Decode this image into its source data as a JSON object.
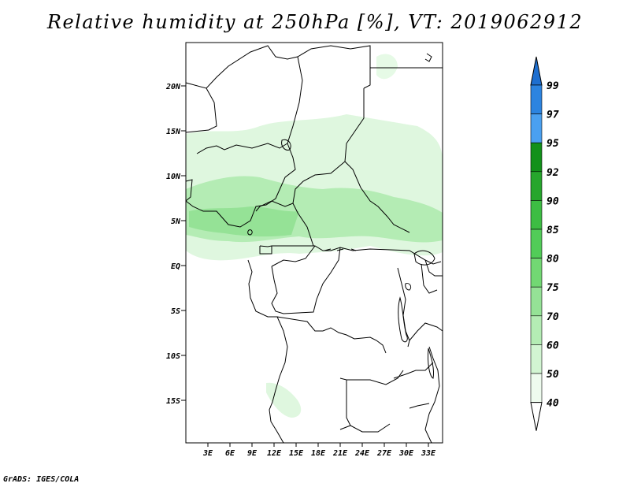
{
  "title": "Relative humidity at 250hPa [%], VT: 2019062912",
  "credit": "GrADS: IGES/COLA",
  "lat_labels": [
    "20N",
    "15N",
    "10N",
    "5N",
    "EQ",
    "5S",
    "10S",
    "15S"
  ],
  "lon_labels": [
    "3E",
    "6E",
    "9E",
    "12E",
    "15E",
    "18E",
    "21E",
    "24E",
    "27E",
    "30E",
    "33E"
  ],
  "colorbar": {
    "levels": [
      "99",
      "97",
      "95",
      "92",
      "90",
      "85",
      "80",
      "75",
      "70",
      "60",
      "50",
      "40"
    ],
    "colors": [
      "#1e6fd0",
      "#2c84e0",
      "#4aa0f0",
      "#12911a",
      "#26a62c",
      "#3dbd43",
      "#52cc58",
      "#72d873",
      "#95e296",
      "#b4ecb4",
      "#d2f5d2",
      "#eefbee"
    ]
  },
  "chart_data": {
    "type": "heatmap",
    "variable": "Relative humidity at 250hPa",
    "units": "%",
    "valid_time": "2019062912",
    "lon_range": [
      0,
      35
    ],
    "lat_range": [
      -20,
      24
    ],
    "contour_levels": [
      40,
      50,
      60,
      70,
      75,
      80,
      85,
      90,
      92,
      95,
      97,
      99
    ]
  }
}
